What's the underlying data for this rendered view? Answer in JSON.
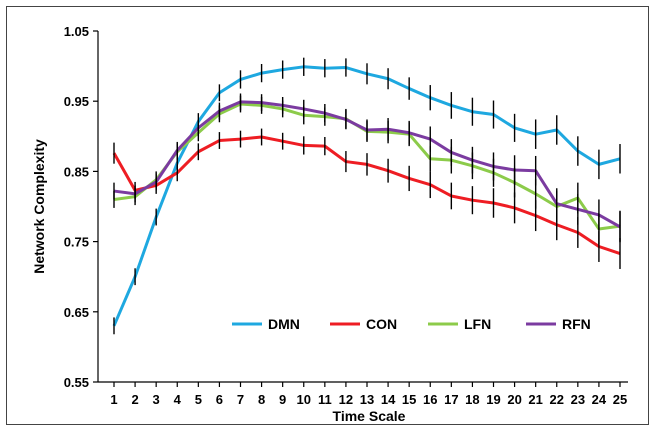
{
  "chart_data": {
    "type": "line",
    "xlabel": "Time Scale",
    "ylabel": "Network Complexity",
    "ylim": [
      0.55,
      1.05
    ],
    "yticks": [
      "0.55",
      "0.65",
      "0.75",
      "0.85",
      "0.95",
      "1.05"
    ],
    "x": [
      1,
      2,
      3,
      4,
      5,
      6,
      7,
      8,
      9,
      10,
      11,
      12,
      13,
      14,
      15,
      16,
      17,
      18,
      19,
      20,
      21,
      22,
      23,
      24,
      25
    ],
    "legend_position": "bottom-center-inside",
    "grid": false,
    "error_bars": true,
    "series": [
      {
        "name": "DMN",
        "color": "#1EA8E0",
        "values": [
          0.63,
          0.7,
          0.785,
          0.862,
          0.921,
          0.962,
          0.981,
          0.99,
          0.995,
          0.999,
          0.997,
          0.998,
          0.989,
          0.982,
          0.968,
          0.955,
          0.944,
          0.935,
          0.931,
          0.912,
          0.903,
          0.909,
          0.879,
          0.86,
          0.868
        ],
        "errors": [
          0.012,
          0.012,
          0.012,
          0.012,
          0.012,
          0.012,
          0.013,
          0.013,
          0.013,
          0.013,
          0.013,
          0.013,
          0.015,
          0.015,
          0.016,
          0.018,
          0.019,
          0.02,
          0.02,
          0.02,
          0.021,
          0.021,
          0.021,
          0.021,
          0.021
        ]
      },
      {
        "name": "CON",
        "color": "#EE1D23",
        "values": [
          0.876,
          0.823,
          0.83,
          0.848,
          0.878,
          0.894,
          0.896,
          0.899,
          0.893,
          0.887,
          0.886,
          0.864,
          0.86,
          0.851,
          0.84,
          0.831,
          0.815,
          0.809,
          0.805,
          0.798,
          0.787,
          0.774,
          0.763,
          0.743,
          0.733
        ],
        "errors": [
          0.015,
          0.012,
          0.012,
          0.012,
          0.012,
          0.012,
          0.012,
          0.012,
          0.012,
          0.013,
          0.013,
          0.015,
          0.016,
          0.017,
          0.018,
          0.019,
          0.019,
          0.02,
          0.021,
          0.022,
          0.022,
          0.022,
          0.022,
          0.022,
          0.022
        ]
      },
      {
        "name": "LFN",
        "color": "#8CCB4A",
        "values": [
          0.81,
          0.814,
          0.838,
          0.878,
          0.905,
          0.932,
          0.946,
          0.944,
          0.939,
          0.93,
          0.928,
          0.925,
          0.907,
          0.906,
          0.903,
          0.868,
          0.866,
          0.858,
          0.848,
          0.834,
          0.818,
          0.8,
          0.812,
          0.768,
          0.772
        ],
        "errors": [
          0.012,
          0.012,
          0.012,
          0.012,
          0.012,
          0.012,
          0.012,
          0.012,
          0.012,
          0.013,
          0.013,
          0.014,
          0.015,
          0.016,
          0.017,
          0.018,
          0.019,
          0.019,
          0.02,
          0.021,
          0.021,
          0.022,
          0.022,
          0.022,
          0.022
        ]
      },
      {
        "name": "RFN",
        "color": "#7B3BA0",
        "values": [
          0.822,
          0.818,
          0.835,
          0.88,
          0.912,
          0.936,
          0.949,
          0.948,
          0.944,
          0.939,
          0.933,
          0.924,
          0.909,
          0.91,
          0.905,
          0.896,
          0.877,
          0.866,
          0.857,
          0.852,
          0.851,
          0.804,
          0.796,
          0.788,
          0.771
        ],
        "errors": [
          0.012,
          0.012,
          0.012,
          0.012,
          0.012,
          0.012,
          0.012,
          0.012,
          0.012,
          0.013,
          0.013,
          0.014,
          0.015,
          0.016,
          0.017,
          0.018,
          0.019,
          0.019,
          0.02,
          0.021,
          0.021,
          0.022,
          0.022,
          0.022,
          0.022
        ]
      }
    ]
  }
}
